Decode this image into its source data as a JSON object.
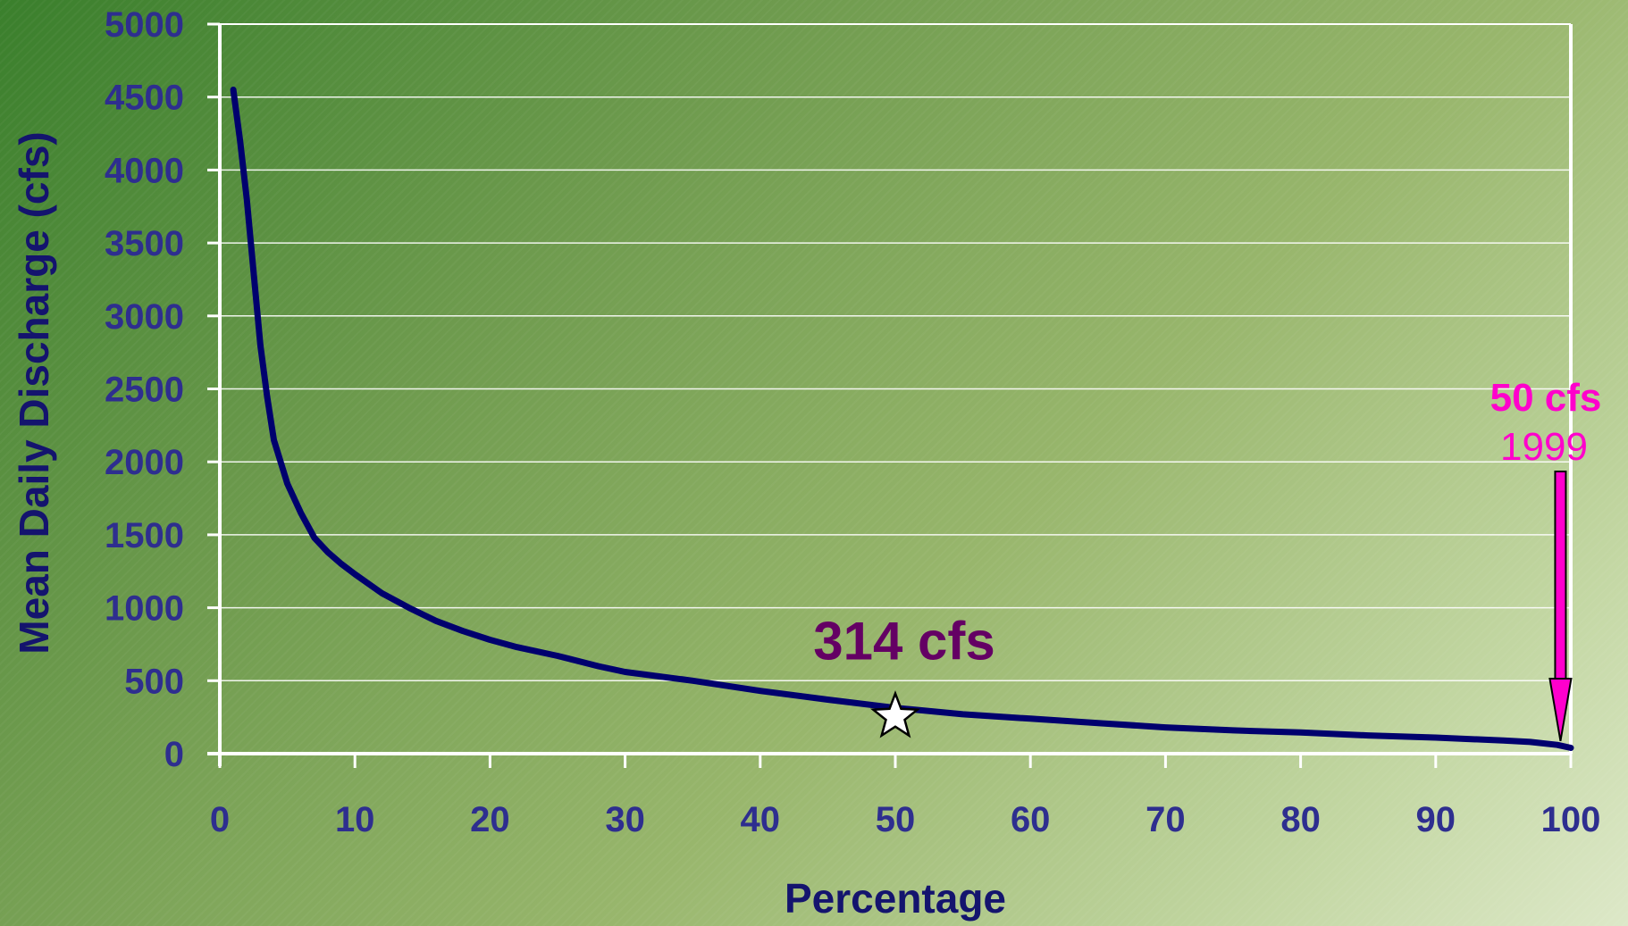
{
  "chart_data": {
    "type": "line",
    "title": "",
    "xlabel": "Percentage",
    "ylabel": "Mean Daily Discharge (cfs)",
    "xlim": [
      0,
      100
    ],
    "ylim": [
      0,
      5000
    ],
    "x_ticks": [
      0,
      10,
      20,
      30,
      40,
      50,
      60,
      70,
      80,
      90,
      100
    ],
    "y_ticks": [
      0,
      500,
      1000,
      1500,
      2000,
      2500,
      3000,
      3500,
      4000,
      4500,
      5000
    ],
    "grid": "horizontal",
    "line_color": "#00006e",
    "series": [
      {
        "x": [
          1,
          1.5,
          2,
          2.5,
          3,
          3.5,
          4,
          5,
          6,
          7,
          8,
          9,
          10,
          12,
          14,
          16,
          18,
          20,
          22,
          25,
          28,
          30,
          35,
          40,
          45,
          50,
          55,
          60,
          65,
          70,
          75,
          80,
          85,
          90,
          95,
          97,
          99,
          100
        ],
        "y": [
          4550,
          4200,
          3800,
          3300,
          2800,
          2450,
          2150,
          1850,
          1650,
          1480,
          1380,
          1300,
          1230,
          1100,
          1000,
          910,
          840,
          780,
          730,
          670,
          600,
          560,
          500,
          430,
          370,
          314,
          270,
          240,
          210,
          180,
          160,
          145,
          125,
          110,
          90,
          80,
          60,
          40
        ]
      }
    ],
    "annotations": [
      {
        "id": "median",
        "label": "314 cfs",
        "x": 50,
        "y": 314,
        "marker": "star",
        "color": "#640064"
      },
      {
        "id": "record-low",
        "label": "50 cfs",
        "sublabel": "1999",
        "x": 99.5,
        "y": 50,
        "marker": "arrow",
        "color": "#ff00cc"
      }
    ]
  }
}
